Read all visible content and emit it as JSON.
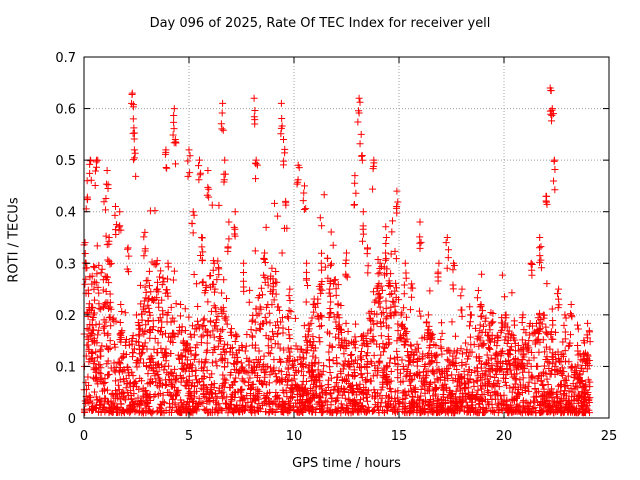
{
  "chart_data": {
    "type": "scatter",
    "title": "Day 096 of 2025, Rate Of TEC Index for receiver yell",
    "xlabel": "GPS time / hours",
    "ylabel": "ROTI / TECUs",
    "xlim": [
      0,
      25
    ],
    "ylim": [
      0,
      0.7
    ],
    "xticks": [
      "0",
      "5",
      "10",
      "15",
      "20",
      "25"
    ],
    "yticks": [
      "0",
      "0.1",
      "0.2",
      "0.3",
      "0.4",
      "0.5",
      "0.6",
      "0.7"
    ],
    "grid": true,
    "marker": "+",
    "color": "#ff0000",
    "series": [
      {
        "name": "ROTI",
        "description_points": "dense scatter of ROTI samples across 0-24 h",
        "x": [
          0.05,
          0.1,
          0.15,
          0.3,
          0.45,
          0.5,
          0.6,
          0.8,
          1.1,
          1.2,
          1.5,
          1.7,
          1.75,
          2.1,
          2.3,
          2.35,
          2.4,
          2.6,
          2.9,
          3.2,
          3.5,
          3.9,
          4.0,
          4.3,
          4.35,
          4.6,
          5.0,
          5.2,
          5.5,
          5.6,
          5.9,
          6.2,
          6.6,
          6.7,
          6.9,
          7.2,
          7.6,
          8.1,
          8.2,
          8.6,
          9.0,
          9.4,
          9.5,
          9.6,
          9.8,
          10.2,
          10.5,
          10.6,
          10.9,
          11.3,
          11.7,
          12.1,
          12.5,
          12.9,
          13.1,
          13.2,
          13.3,
          13.5,
          13.8,
          14.1,
          14.4,
          14.6,
          14.9,
          15.1,
          15.3,
          15.6,
          16.0,
          16.4,
          16.9,
          17.3,
          17.6,
          18.0,
          18.4,
          18.9,
          19.3,
          19.7,
          20.1,
          20.5,
          20.9,
          21.3,
          21.7,
          22.0,
          22.2,
          22.3,
          22.4,
          22.6,
          22.9,
          23.2,
          23.5,
          23.8,
          24.0
        ],
        "y": [
          0.34,
          0.3,
          0.46,
          0.5,
          0.2,
          0.15,
          0.5,
          0.12,
          0.48,
          0.35,
          0.41,
          0.4,
          0.22,
          0.33,
          0.63,
          0.58,
          0.52,
          0.18,
          0.36,
          0.12,
          0.25,
          0.52,
          0.3,
          0.6,
          0.54,
          0.22,
          0.52,
          0.4,
          0.5,
          0.35,
          0.48,
          0.3,
          0.61,
          0.5,
          0.38,
          0.4,
          0.3,
          0.62,
          0.5,
          0.32,
          0.27,
          0.61,
          0.54,
          0.42,
          0.25,
          0.49,
          0.45,
          0.3,
          0.12,
          0.3,
          0.25,
          0.2,
          0.32,
          0.47,
          0.62,
          0.55,
          0.4,
          0.33,
          0.5,
          0.3,
          0.35,
          0.28,
          0.44,
          0.2,
          0.3,
          0.26,
          0.38,
          0.2,
          0.3,
          0.35,
          0.3,
          0.25,
          0.2,
          0.22,
          0.18,
          0.15,
          0.2,
          0.18,
          0.2,
          0.3,
          0.35,
          0.43,
          0.64,
          0.6,
          0.5,
          0.25,
          0.2,
          0.22,
          0.18,
          0.15,
          0.12
        ]
      }
    ]
  }
}
